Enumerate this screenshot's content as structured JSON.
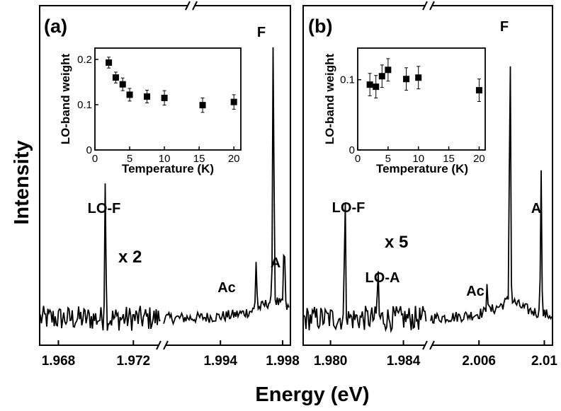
{
  "chart_data": [
    {
      "type": "line",
      "panel_label": "(a)",
      "xlabel": "Energy (eV)",
      "ylabel": "Intensity",
      "axis_break": true,
      "x_segments": [
        {
          "xlim": [
            1.967,
            1.9735
          ],
          "ticks": [
            1.968,
            1.972
          ],
          "tick_labels": [
            "1.968",
            "1.972"
          ]
        },
        {
          "xlim": [
            1.9903,
            1.9985
          ],
          "ticks": [
            1.994,
            1.998
          ],
          "tick_labels": [
            "1.994",
            "1.998"
          ]
        }
      ],
      "segment_scale_note": "x 2",
      "peaks": [
        {
          "label": "LO-F",
          "x": 1.9705,
          "height": 0.52
        },
        {
          "label": "Ac",
          "x": 1.9963,
          "height": 0.18
        },
        {
          "label": "F",
          "x": 1.9974,
          "height": 1.0
        },
        {
          "label": "A",
          "x": 1.9981,
          "height": 0.26
        }
      ],
      "inset": {
        "type": "scatter",
        "xlabel": "Temperature (K)",
        "ylabel": "LO-band weight",
        "xlim": [
          0,
          21
        ],
        "ylim": [
          0,
          0.225
        ],
        "xticks": [
          "0",
          "5",
          "10",
          "15",
          "20"
        ],
        "yticks": [
          "0",
          "0.1",
          "0.2"
        ],
        "points": [
          {
            "x": 2,
            "y": 0.193,
            "err": 0.012
          },
          {
            "x": 3,
            "y": 0.16,
            "err": 0.012
          },
          {
            "x": 4,
            "y": 0.145,
            "err": 0.014
          },
          {
            "x": 5,
            "y": 0.122,
            "err": 0.014
          },
          {
            "x": 7.5,
            "y": 0.118,
            "err": 0.014
          },
          {
            "x": 10,
            "y": 0.115,
            "err": 0.016
          },
          {
            "x": 15.5,
            "y": 0.099,
            "err": 0.016
          },
          {
            "x": 20,
            "y": 0.106,
            "err": 0.016
          }
        ]
      }
    },
    {
      "type": "line",
      "panel_label": "(b)",
      "xlabel": "Energy (eV)",
      "ylabel": "Intensity",
      "axis_break": true,
      "x_segments": [
        {
          "xlim": [
            1.9785,
            1.9853
          ],
          "ticks": [
            1.98,
            1.984
          ],
          "tick_labels": [
            "1.980",
            "1.984"
          ]
        },
        {
          "xlim": [
            2.003,
            2.0105
          ],
          "ticks": [
            2.006,
            2.01
          ],
          "tick_labels": [
            "2.006",
            "2.01"
          ]
        }
      ],
      "segment_scale_note": "x 5",
      "peaks": [
        {
          "label": "LO-F",
          "x": 1.9808,
          "height": 0.47
        },
        {
          "label": "LO-A",
          "x": 1.9826,
          "height": 0.18
        },
        {
          "label": "Ac",
          "x": 2.0065,
          "height": 0.12
        },
        {
          "label": "F",
          "x": 2.0079,
          "height": 1.0
        },
        {
          "label": "A",
          "x": 2.0098,
          "height": 0.54
        }
      ],
      "inset": {
        "type": "scatter",
        "xlabel": "Temperature (K)",
        "ylabel": "LO-band weight",
        "xlim": [
          0,
          21
        ],
        "ylim": [
          0,
          0.145
        ],
        "xticks": [
          "0",
          "5",
          "10",
          "15",
          "20"
        ],
        "yticks": [
          "0",
          "0.1"
        ],
        "points": [
          {
            "x": 2,
            "y": 0.093,
            "err": 0.016
          },
          {
            "x": 3,
            "y": 0.09,
            "err": 0.016
          },
          {
            "x": 4,
            "y": 0.105,
            "err": 0.016
          },
          {
            "x": 5,
            "y": 0.114,
            "err": 0.016
          },
          {
            "x": 8,
            "y": 0.101,
            "err": 0.016
          },
          {
            "x": 10,
            "y": 0.103,
            "err": 0.016
          },
          {
            "x": 20,
            "y": 0.085,
            "err": 0.016
          }
        ]
      }
    }
  ]
}
